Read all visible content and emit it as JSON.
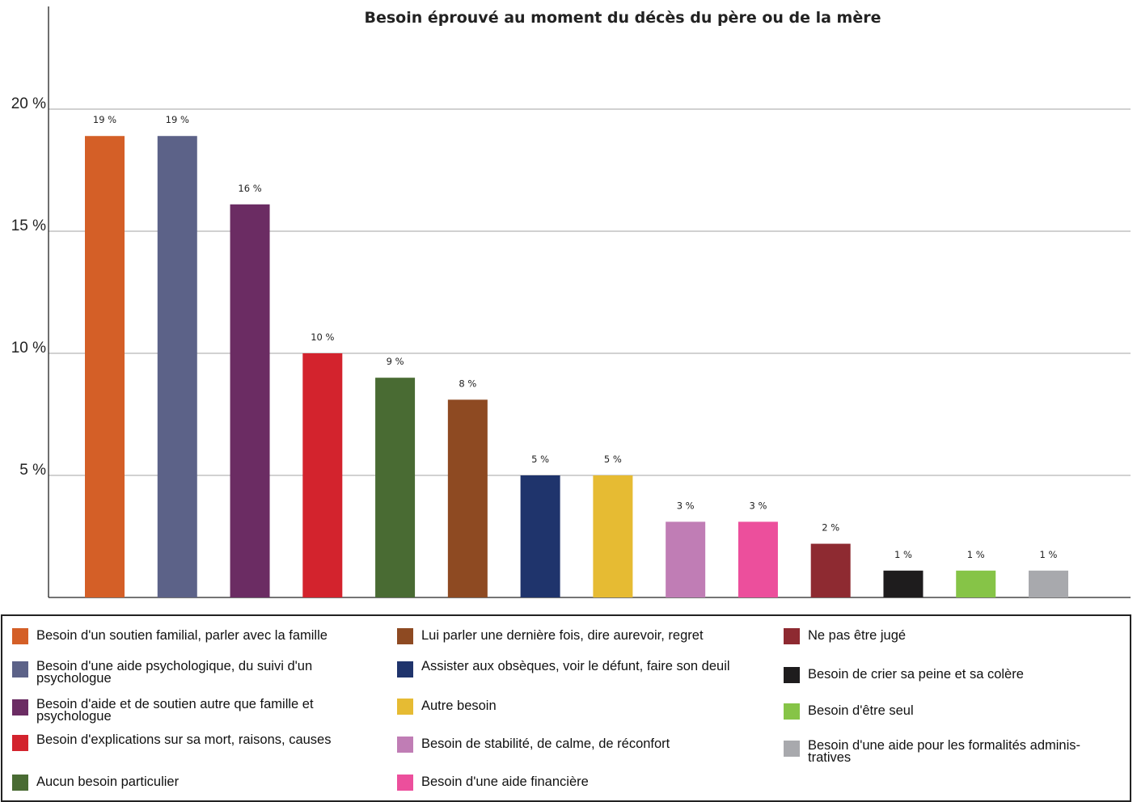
{
  "chart_data": {
    "type": "bar",
    "title": "Besoin éprouvé au moment du décès du père ou de la mère",
    "xlabel": "",
    "ylabel": "",
    "ylim": [
      0,
      24
    ],
    "yticks": [
      5,
      10,
      15,
      20
    ],
    "ytick_labels": [
      "5 %",
      "10 %",
      "15 %",
      "20 %"
    ],
    "grid": true,
    "legend": "bottom",
    "categories": [
      "Besoin d'un soutien familial, parler avec la famille",
      "Besoin d'une aide psychologique,  du suivi d'un psychologue",
      "Besoin d'aide et de soutien autre que famille et psychologue",
      "Besoin d'explications sur sa mort, raisons, causes",
      "Aucun besoin particulier",
      "Lui parler une dernière fois, dire aurevoir, regret",
      "Assister aux obsèques, voir le défunt, faire son deuil",
      "Autre besoin",
      "Besoin de stabilité, de calme, de réconfort",
      "Besoin d'une aide financière",
      "Ne pas être jugé",
      "Besoin de crier sa peine et sa colère",
      "Besoin d'être seul",
      "Besoin d'une aide pour les formalités adminis-tratives"
    ],
    "values": [
      18.9,
      18.9,
      16.1,
      10.0,
      9.0,
      8.1,
      5.0,
      5.0,
      3.1,
      3.1,
      2.2,
      1.1,
      1.1,
      1.1
    ],
    "data_labels": [
      "19 %",
      "19 %",
      "16 %",
      "10 %",
      "9 %",
      "8 %",
      "5 %",
      "5 %",
      "3 %",
      "3 %",
      "2 %",
      "1 %",
      "1 %",
      "1 %"
    ],
    "colors": [
      "#d45f27",
      "#5c6288",
      "#6b2c63",
      "#d3232d",
      "#496b33",
      "#8e4a22",
      "#1f346c",
      "#e6bb33",
      "#c07db5",
      "#ec4f9c",
      "#8e2a31",
      "#1e1c1d",
      "#86c447",
      "#a8a9ad"
    ]
  },
  "legend": {
    "col1": [
      {
        "label": "Besoin d'un soutien familial, parler avec la famille",
        "color": "#d45f27"
      },
      {
        "label": "Besoin d'une aide psychologique,  du suivi d'un psychologue",
        "color": "#5c6288"
      },
      {
        "label": "Besoin d'aide et de soutien autre que famille et psychologue",
        "color": "#6b2c63"
      },
      {
        "label": "Besoin d'explications sur sa mort, raisons, causes",
        "color": "#d3232d"
      },
      {
        "label": "Aucun besoin particulier",
        "color": "#496b33"
      }
    ],
    "col2": [
      {
        "label": "Lui parler une dernière fois, dire aurevoir, regret",
        "color": "#8e4a22"
      },
      {
        "label": "Assister aux obsèques, voir le défunt, faire son deuil",
        "color": "#1f346c"
      },
      {
        "label": "Autre besoin",
        "color": "#e6bb33"
      },
      {
        "label": "Besoin de stabilité, de calme, de réconfort",
        "color": "#c07db5"
      },
      {
        "label": "Besoin d'une aide financière",
        "color": "#ec4f9c"
      }
    ],
    "col3": [
      {
        "label": "Ne pas être jugé",
        "color": "#8e2a31"
      },
      {
        "label": "Besoin de crier sa peine et sa colère",
        "color": "#1e1c1d"
      },
      {
        "label": "Besoin d'être seul",
        "color": "#86c447"
      },
      {
        "label": "Besoin d'une aide pour les formalités adminis-tratives",
        "color": "#a8a9ad"
      }
    ]
  }
}
